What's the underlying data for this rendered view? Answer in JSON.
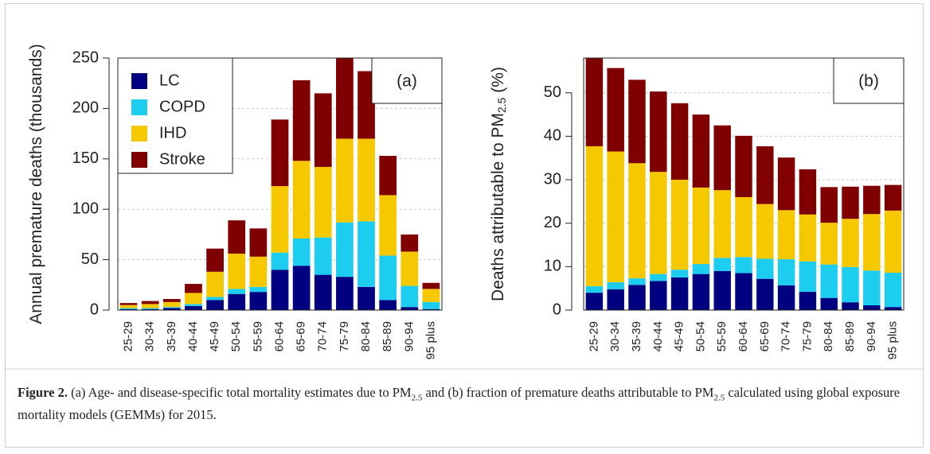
{
  "chart_data": [
    {
      "type": "stacked_bar",
      "y_label": [
        "Annual premature deaths (thousands)"
      ],
      "label": "(a)",
      "categories": [
        "25-29",
        "30-34",
        "35-39",
        "40-44",
        "45-49",
        "50-54",
        "55-59",
        "60-64",
        "65-69",
        "70-74",
        "75-79",
        "80-84",
        "85-89",
        "90-94",
        "95 plus"
      ],
      "series": [
        {
          "name": "LC",
          "color": "#000080",
          "values": [
            1,
            1,
            2,
            4,
            10,
            16,
            18,
            40,
            44,
            35,
            33,
            23,
            10,
            3,
            1
          ]
        },
        {
          "name": "COPD",
          "color": "#1ccdf0",
          "values": [
            1,
            1,
            1,
            2,
            3,
            5,
            5,
            17,
            27,
            37,
            54,
            65,
            44,
            21,
            7
          ]
        },
        {
          "name": "IHD",
          "color": "#f5c800",
          "values": [
            3,
            4,
            5,
            11,
            25,
            35,
            30,
            66,
            77,
            70,
            83,
            82,
            60,
            34,
            13
          ]
        },
        {
          "name": "Stroke",
          "color": "#800000",
          "values": [
            2,
            3,
            3,
            9,
            23,
            33,
            28,
            66,
            80,
            73,
            80,
            67,
            39,
            17,
            6
          ]
        }
      ],
      "ylim": [
        0,
        250
      ],
      "yticks": [
        0,
        50,
        100,
        150,
        200,
        250
      ],
      "grid": true,
      "legend": "top-left"
    },
    {
      "type": "stacked_bar",
      "y_label": [
        "Deaths attributable to PM",
        "2.5",
        " (%)"
      ],
      "label": "(b)",
      "categories": [
        "25-29",
        "30-34",
        "35-39",
        "40-44",
        "45-49",
        "50-54",
        "55-59",
        "60-64",
        "65-69",
        "70-74",
        "75-79",
        "80-84",
        "85-89",
        "90-94",
        "95 plus"
      ],
      "series": [
        {
          "name": "LC",
          "color": "#000080",
          "values": [
            4,
            4.8,
            5.8,
            6.7,
            7.5,
            8.3,
            9,
            8.5,
            7.2,
            5.7,
            4.2,
            2.8,
            1.8,
            1.1,
            0.7
          ]
        },
        {
          "name": "COPD",
          "color": "#1ccdf0",
          "values": [
            1.5,
            1.6,
            1.5,
            1.6,
            1.8,
            2.3,
            3,
            3.7,
            4.6,
            6,
            7,
            7.7,
            8.1,
            8,
            7.9
          ]
        },
        {
          "name": "IHD",
          "color": "#f5c800",
          "values": [
            32.2,
            30.1,
            26.5,
            23.5,
            20.7,
            17.6,
            15.6,
            13.8,
            12.6,
            11.3,
            10.8,
            9.6,
            11.1,
            13,
            14.3
          ]
        },
        {
          "name": "Stroke",
          "color": "#800000",
          "values": [
            20.3,
            19.2,
            19.2,
            18.5,
            17.6,
            16.8,
            14.9,
            14.1,
            13.3,
            12.1,
            10.4,
            8.2,
            7.4,
            6.5,
            5.9
          ]
        }
      ],
      "ylim": [
        0,
        58
      ],
      "yticks": [
        0,
        10,
        20,
        30,
        40,
        50
      ],
      "grid": true,
      "legend": "none"
    }
  ],
  "caption": {
    "label": "Figure 2.",
    "text": [
      " (a) Age- and disease-specific total mortality estimates due to PM",
      "2.5",
      " and (b) fraction of premature deaths attributable to PM",
      "2.5",
      " calculated using global exposure mortality models (GEMMs) for 2015."
    ]
  }
}
